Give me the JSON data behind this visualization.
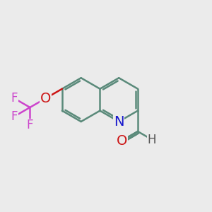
{
  "background_color": "#ebebeb",
  "bond_color": "#5a8a7a",
  "bond_width": 1.8,
  "atom_colors": {
    "N": "#1515cc",
    "O": "#cc1515",
    "F": "#cc44cc",
    "H": "#555555",
    "C": "#5a8a7a"
  },
  "font_size_large": 14,
  "font_size_medium": 12,
  "font_size_small": 11
}
